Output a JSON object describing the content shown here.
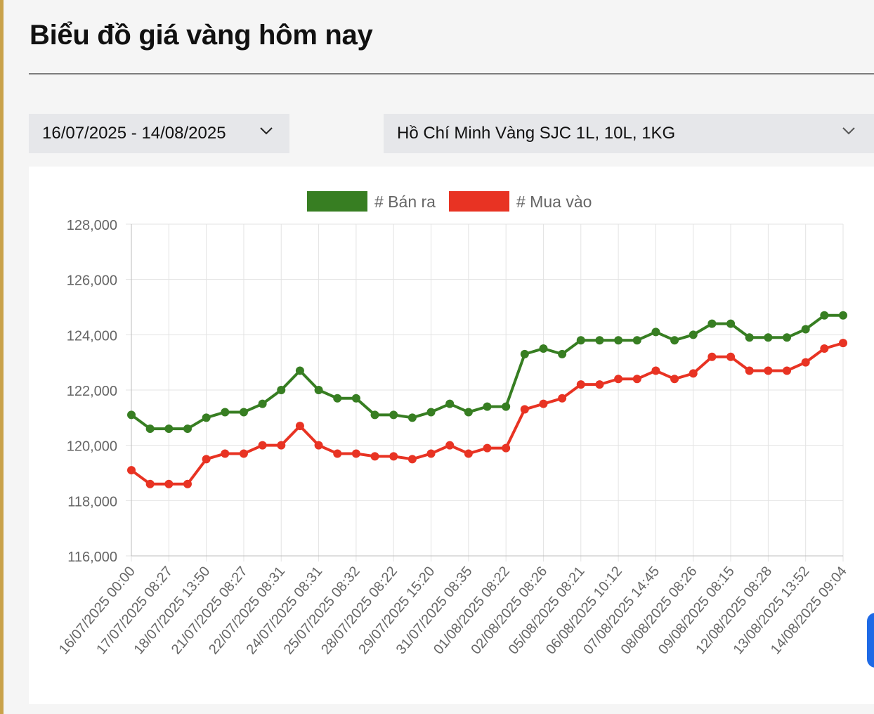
{
  "page": {
    "title": "Biểu đồ giá vàng hôm nay"
  },
  "filters": {
    "date_range": {
      "value": "16/07/2025 - 14/08/2025",
      "icon": "chevron-down-icon"
    },
    "location_product": {
      "value": "Hồ Chí Minh Vàng SJC 1L, 10L, 1KG",
      "icon": "chevron-down-icon"
    }
  },
  "chart_data": {
    "type": "line",
    "title": "",
    "xlabel": "",
    "ylabel": "",
    "ylim": [
      116000,
      128000
    ],
    "ytick_step": 2000,
    "grid": true,
    "legend_position": "top",
    "xtick_labels": [
      "16/07/2025 00:00",
      "17/07/2025 08:27",
      "18/07/2025 13:50",
      "21/07/2025 08:27",
      "22/07/2025 08:31",
      "24/07/2025 08:31",
      "25/07/2025 08:32",
      "28/07/2025 08:22",
      "29/07/2025 15:20",
      "31/07/2025 08:35",
      "01/08/2025 08:22",
      "02/08/2025 08:26",
      "05/08/2025 08:21",
      "06/08/2025 10:12",
      "07/08/2025 14:45",
      "08/08/2025 08:26",
      "09/08/2025 08:15",
      "12/08/2025 08:28",
      "13/08/2025 13:52",
      "14/08/2025 09:04"
    ],
    "series": [
      {
        "name": "# Bán ra",
        "color": "#377e22",
        "values": [
          121100,
          120600,
          120600,
          120600,
          121000,
          121200,
          121200,
          121500,
          122000,
          122700,
          122000,
          121700,
          121700,
          121100,
          121100,
          121000,
          121200,
          121500,
          121200,
          121400,
          121400,
          123300,
          123500,
          123300,
          123800,
          123800,
          123800,
          123800,
          124100,
          123800,
          124000,
          124400,
          124400,
          123900,
          123900,
          123900,
          124200,
          124700,
          124700
        ]
      },
      {
        "name": "# Mua vào",
        "color": "#e83323",
        "values": [
          119100,
          118600,
          118600,
          118600,
          119500,
          119700,
          119700,
          120000,
          120000,
          120700,
          120000,
          119700,
          119700,
          119600,
          119600,
          119500,
          119700,
          120000,
          119700,
          119900,
          119900,
          121300,
          121500,
          121700,
          122200,
          122200,
          122400,
          122400,
          122700,
          122400,
          122600,
          123200,
          123200,
          122700,
          122700,
          122700,
          123000,
          123500,
          123700
        ]
      }
    ]
  }
}
